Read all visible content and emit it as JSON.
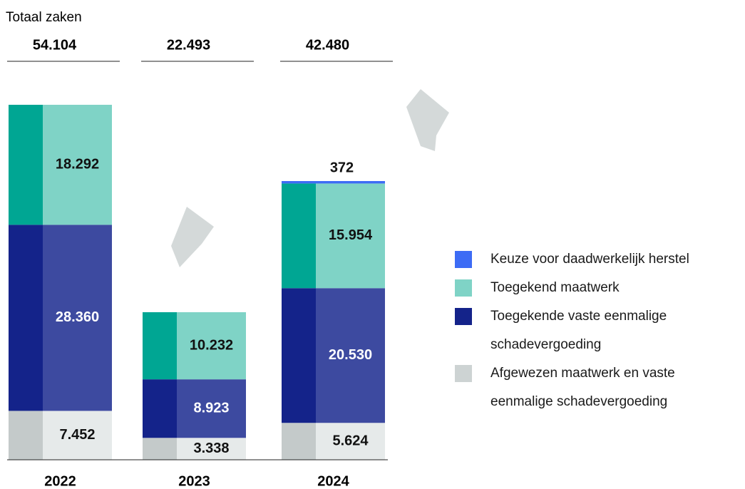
{
  "chart_data": {
    "type": "bar",
    "stacked": true,
    "categories": [
      "2022",
      "2023",
      "2024"
    ],
    "totals": {
      "label": "Totaal zaken",
      "values": [
        54104,
        22493,
        42480
      ],
      "value_labels": [
        "54.104",
        "22.493",
        "42.480"
      ]
    },
    "series": [
      {
        "name": "Keuze voor daadwerkelijk herstel",
        "color": "#3d6cf5",
        "bar_colors": [
          "#3d6cf5",
          "#3d6cf5"
        ],
        "label_color": "#111111",
        "values": [
          null,
          null,
          372
        ],
        "value_labels": [
          null,
          null,
          "372"
        ]
      },
      {
        "name": "Toegekend maatwerk",
        "color": "#7fd3c6",
        "bar_colors": [
          "#00a693",
          "#7fd3c6"
        ],
        "label_color": "#111111",
        "values": [
          18292,
          10232,
          15954
        ],
        "value_labels": [
          "18.292",
          "10.232",
          "15.954"
        ]
      },
      {
        "name": "Toegekende vaste eenmalige schadevergoeding",
        "color": "#14238a",
        "bar_colors": [
          "#14238a",
          "#3d4aa0"
        ],
        "label_color": "#ffffff",
        "values": [
          28360,
          8923,
          20530
        ],
        "value_labels": [
          "28.360",
          "8.923",
          "20.530"
        ]
      },
      {
        "name": "Afgewezen maatwerk en vaste eenmalige schadevergoeding",
        "color": "#cdd3d3",
        "bar_colors": [
          "#c4caca",
          "#e6eaea"
        ],
        "label_color": "#111111",
        "values": [
          7452,
          3338,
          5624
        ],
        "value_labels": [
          "7.452",
          "3.338",
          "5.624"
        ]
      }
    ]
  }
}
